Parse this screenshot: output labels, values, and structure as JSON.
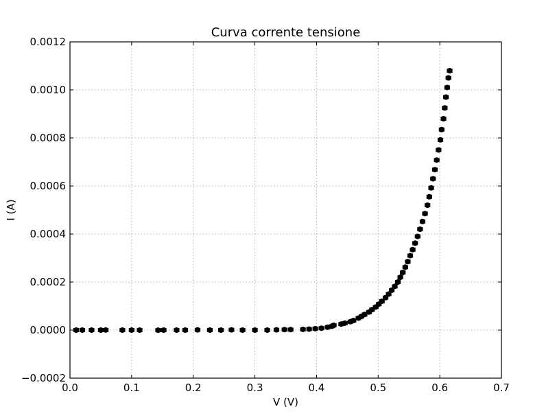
{
  "chart_data": {
    "type": "scatter",
    "title": "Curva corrente tensione",
    "xlabel": "V (V)",
    "ylabel": "I (A)",
    "xlim": [
      0.0,
      0.7
    ],
    "ylim": [
      -0.0002,
      0.0012
    ],
    "grid": true,
    "x_ticks": [
      "0.0",
      "0.1",
      "0.2",
      "0.3",
      "0.4",
      "0.5",
      "0.6",
      "0.7"
    ],
    "y_ticks": [
      "−0.0002",
      "0.0000",
      "0.0002",
      "0.0004",
      "0.0006",
      "0.0008",
      "0.0010",
      "0.0012"
    ],
    "error_bars": {
      "x": 0.004,
      "y": 1e-05
    },
    "points": [
      {
        "x": 0.01,
        "y": 0.0
      },
      {
        "x": 0.02,
        "y": 0.0
      },
      {
        "x": 0.035,
        "y": 0.0
      },
      {
        "x": 0.05,
        "y": 0.0
      },
      {
        "x": 0.058,
        "y": 5e-07
      },
      {
        "x": 0.085,
        "y": 0.0
      },
      {
        "x": 0.1,
        "y": 0.0
      },
      {
        "x": 0.113,
        "y": 0.0
      },
      {
        "x": 0.143,
        "y": -5e-07
      },
      {
        "x": 0.152,
        "y": 0.0
      },
      {
        "x": 0.173,
        "y": 0.0
      },
      {
        "x": 0.187,
        "y": 0.0
      },
      {
        "x": 0.207,
        "y": 1e-06
      },
      {
        "x": 0.227,
        "y": 0.0
      },
      {
        "x": 0.245,
        "y": 0.0
      },
      {
        "x": 0.262,
        "y": 1e-06
      },
      {
        "x": 0.28,
        "y": 0.0
      },
      {
        "x": 0.3,
        "y": 0.0
      },
      {
        "x": 0.32,
        "y": 0.0
      },
      {
        "x": 0.335,
        "y": 1e-06
      },
      {
        "x": 0.348,
        "y": 2e-06
      },
      {
        "x": 0.358,
        "y": 2e-06
      },
      {
        "x": 0.378,
        "y": 3e-06
      },
      {
        "x": 0.388,
        "y": 4e-06
      },
      {
        "x": 0.398,
        "y": 6e-06
      },
      {
        "x": 0.408,
        "y": 8e-06
      },
      {
        "x": 0.418,
        "y": 1.2e-05
      },
      {
        "x": 0.425,
        "y": 1.6e-05
      },
      {
        "x": 0.428,
        "y": 2e-05
      },
      {
        "x": 0.44,
        "y": 2.5e-05
      },
      {
        "x": 0.446,
        "y": 2.9e-05
      },
      {
        "x": 0.455,
        "y": 3.5e-05
      },
      {
        "x": 0.46,
        "y": 4e-05
      },
      {
        "x": 0.468,
        "y": 5e-05
      },
      {
        "x": 0.473,
        "y": 5.7e-05
      },
      {
        "x": 0.478,
        "y": 6.5e-05
      },
      {
        "x": 0.485,
        "y": 7.5e-05
      },
      {
        "x": 0.49,
        "y": 8.5e-05
      },
      {
        "x": 0.496,
        "y": 9.6e-05
      },
      {
        "x": 0.501,
        "y": 0.000108
      },
      {
        "x": 0.506,
        "y": 0.00012
      },
      {
        "x": 0.512,
        "y": 0.000135
      },
      {
        "x": 0.517,
        "y": 0.00015
      },
      {
        "x": 0.522,
        "y": 0.000166
      },
      {
        "x": 0.527,
        "y": 0.000182
      },
      {
        "x": 0.532,
        "y": 0.0002
      },
      {
        "x": 0.536,
        "y": 0.00022
      },
      {
        "x": 0.54,
        "y": 0.00024
      },
      {
        "x": 0.544,
        "y": 0.000262
      },
      {
        "x": 0.548,
        "y": 0.000285
      },
      {
        "x": 0.552,
        "y": 0.00031
      },
      {
        "x": 0.556,
        "y": 0.000335
      },
      {
        "x": 0.56,
        "y": 0.000362
      },
      {
        "x": 0.564,
        "y": 0.00039
      },
      {
        "x": 0.568,
        "y": 0.00042
      },
      {
        "x": 0.572,
        "y": 0.000452
      },
      {
        "x": 0.576,
        "y": 0.000485
      },
      {
        "x": 0.58,
        "y": 0.00052
      },
      {
        "x": 0.583,
        "y": 0.000555
      },
      {
        "x": 0.586,
        "y": 0.000592
      },
      {
        "x": 0.589,
        "y": 0.00063
      },
      {
        "x": 0.592,
        "y": 0.000668
      },
      {
        "x": 0.595,
        "y": 0.000708
      },
      {
        "x": 0.598,
        "y": 0.00075
      },
      {
        "x": 0.601,
        "y": 0.000792
      },
      {
        "x": 0.603,
        "y": 0.000835
      },
      {
        "x": 0.606,
        "y": 0.00088
      },
      {
        "x": 0.608,
        "y": 0.000925
      },
      {
        "x": 0.61,
        "y": 0.00097
      },
      {
        "x": 0.612,
        "y": 0.00101
      },
      {
        "x": 0.614,
        "y": 0.00105
      },
      {
        "x": 0.616,
        "y": 0.00108
      }
    ]
  }
}
